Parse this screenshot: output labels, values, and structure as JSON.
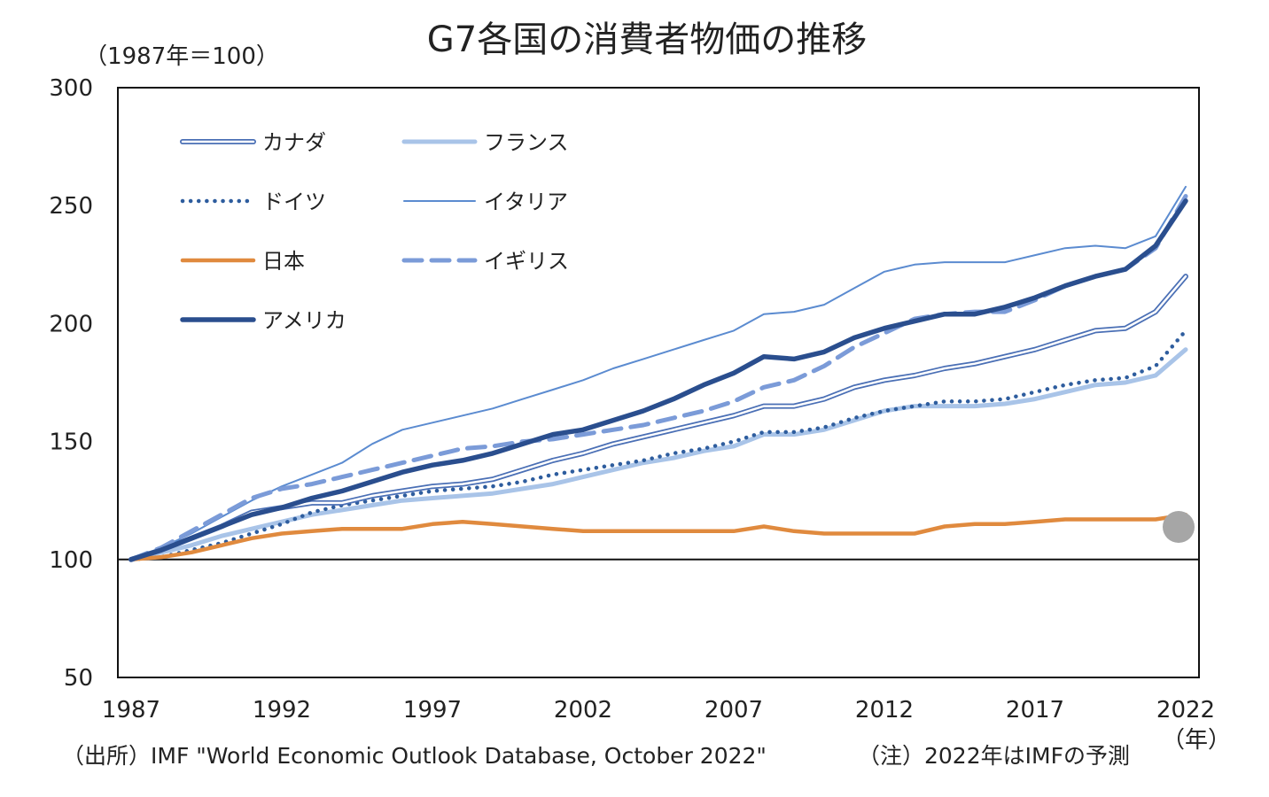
{
  "chart_data": {
    "type": "line",
    "title": "G7各国の消費者物価の推移",
    "unit_label": "（1987年＝100）",
    "xlabel": "（年）",
    "ylabel": "",
    "ylim": [
      50,
      300
    ],
    "y_ticks": [
      "50",
      "100",
      "150",
      "200",
      "250",
      "300"
    ],
    "y_tick_values": [
      50,
      100,
      150,
      200,
      250,
      300
    ],
    "xlim": [
      1987,
      2022
    ],
    "x_ticks": [
      "1987",
      "1992",
      "1997",
      "2002",
      "2007",
      "2012",
      "2017",
      "2022"
    ],
    "x_tick_values": [
      1987,
      1992,
      1997,
      2002,
      2007,
      2012,
      2017,
      2022
    ],
    "baseline": 100,
    "grid": false,
    "legend_position": "top-left",
    "x": [
      1987,
      1988,
      1989,
      1990,
      1991,
      1992,
      1993,
      1994,
      1995,
      1996,
      1997,
      1998,
      1999,
      2000,
      2001,
      2002,
      2003,
      2004,
      2005,
      2006,
      2007,
      2008,
      2009,
      2010,
      2011,
      2012,
      2013,
      2014,
      2015,
      2016,
      2017,
      2018,
      2019,
      2020,
      2021,
      2022
    ],
    "series": [
      {
        "name": "カナダ",
        "style": "double",
        "color": "#4a6fb5",
        "values": [
          100,
          104,
          109,
          114,
          120,
          122,
          124,
          124,
          127,
          129,
          131,
          132,
          134,
          138,
          142,
          145,
          149,
          152,
          155,
          158,
          161,
          165,
          165,
          168,
          173,
          176,
          178,
          181,
          183,
          186,
          189,
          193,
          197,
          198,
          205,
          220
        ]
      },
      {
        "name": "フランス",
        "style": "thick-light",
        "color": "#a9c4e8",
        "values": [
          100,
          103,
          106,
          110,
          113,
          116,
          119,
          121,
          123,
          125,
          126,
          127,
          128,
          130,
          132,
          135,
          138,
          141,
          143,
          146,
          148,
          153,
          153,
          155,
          159,
          163,
          165,
          165,
          165,
          166,
          168,
          171,
          174,
          175,
          178,
          189
        ]
      },
      {
        "name": "ドイツ",
        "style": "dotted",
        "color": "#2e5d9e",
        "values": [
          100,
          101,
          104,
          107,
          111,
          115,
          120,
          123,
          125,
          127,
          129,
          130,
          131,
          133,
          136,
          138,
          140,
          142,
          145,
          147,
          150,
          154,
          154,
          156,
          160,
          163,
          165,
          167,
          167,
          168,
          171,
          174,
          176,
          177,
          182,
          197
        ]
      },
      {
        "name": "イタリア",
        "style": "thin",
        "color": "#5b8bd0",
        "values": [
          100,
          105,
          111,
          118,
          125,
          131,
          136,
          141,
          149,
          155,
          158,
          161,
          164,
          168,
          172,
          176,
          181,
          185,
          189,
          193,
          197,
          204,
          205,
          208,
          215,
          222,
          225,
          226,
          226,
          226,
          229,
          232,
          233,
          232,
          237,
          258
        ]
      },
      {
        "name": "日本",
        "style": "orange",
        "color": "#e08a3e",
        "values": [
          100,
          101,
          103,
          106,
          109,
          111,
          112,
          113,
          113,
          113,
          115,
          116,
          115,
          114,
          113,
          112,
          112,
          112,
          112,
          112,
          112,
          114,
          112,
          111,
          111,
          111,
          111,
          114,
          115,
          115,
          116,
          117,
          117,
          117,
          117,
          119
        ]
      },
      {
        "name": "イギリス",
        "style": "dashed",
        "color": "#7b9bd8",
        "values": [
          100,
          105,
          112,
          119,
          126,
          130,
          132,
          135,
          138,
          141,
          144,
          147,
          148,
          150,
          151,
          153,
          155,
          157,
          160,
          163,
          167,
          173,
          176,
          182,
          190,
          196,
          202,
          204,
          205,
          205,
          210,
          216,
          220,
          223,
          232,
          254
        ]
      },
      {
        "name": "アメリカ",
        "style": "thick-dark",
        "color": "#2a4e8e",
        "values": [
          100,
          104,
          109,
          114,
          119,
          122,
          126,
          129,
          133,
          137,
          140,
          142,
          145,
          149,
          153,
          155,
          159,
          163,
          168,
          174,
          179,
          186,
          185,
          188,
          194,
          198,
          201,
          204,
          204,
          207,
          211,
          216,
          220,
          223,
          233,
          252
        ]
      }
    ]
  },
  "footer": {
    "source": "（出所）IMF \"World Economic Outlook Database, October 2022\"",
    "note": "（注）2022年はIMFの予測"
  },
  "colors": {
    "axis": "#111111",
    "cursor_dot": "#a6a6a6"
  }
}
